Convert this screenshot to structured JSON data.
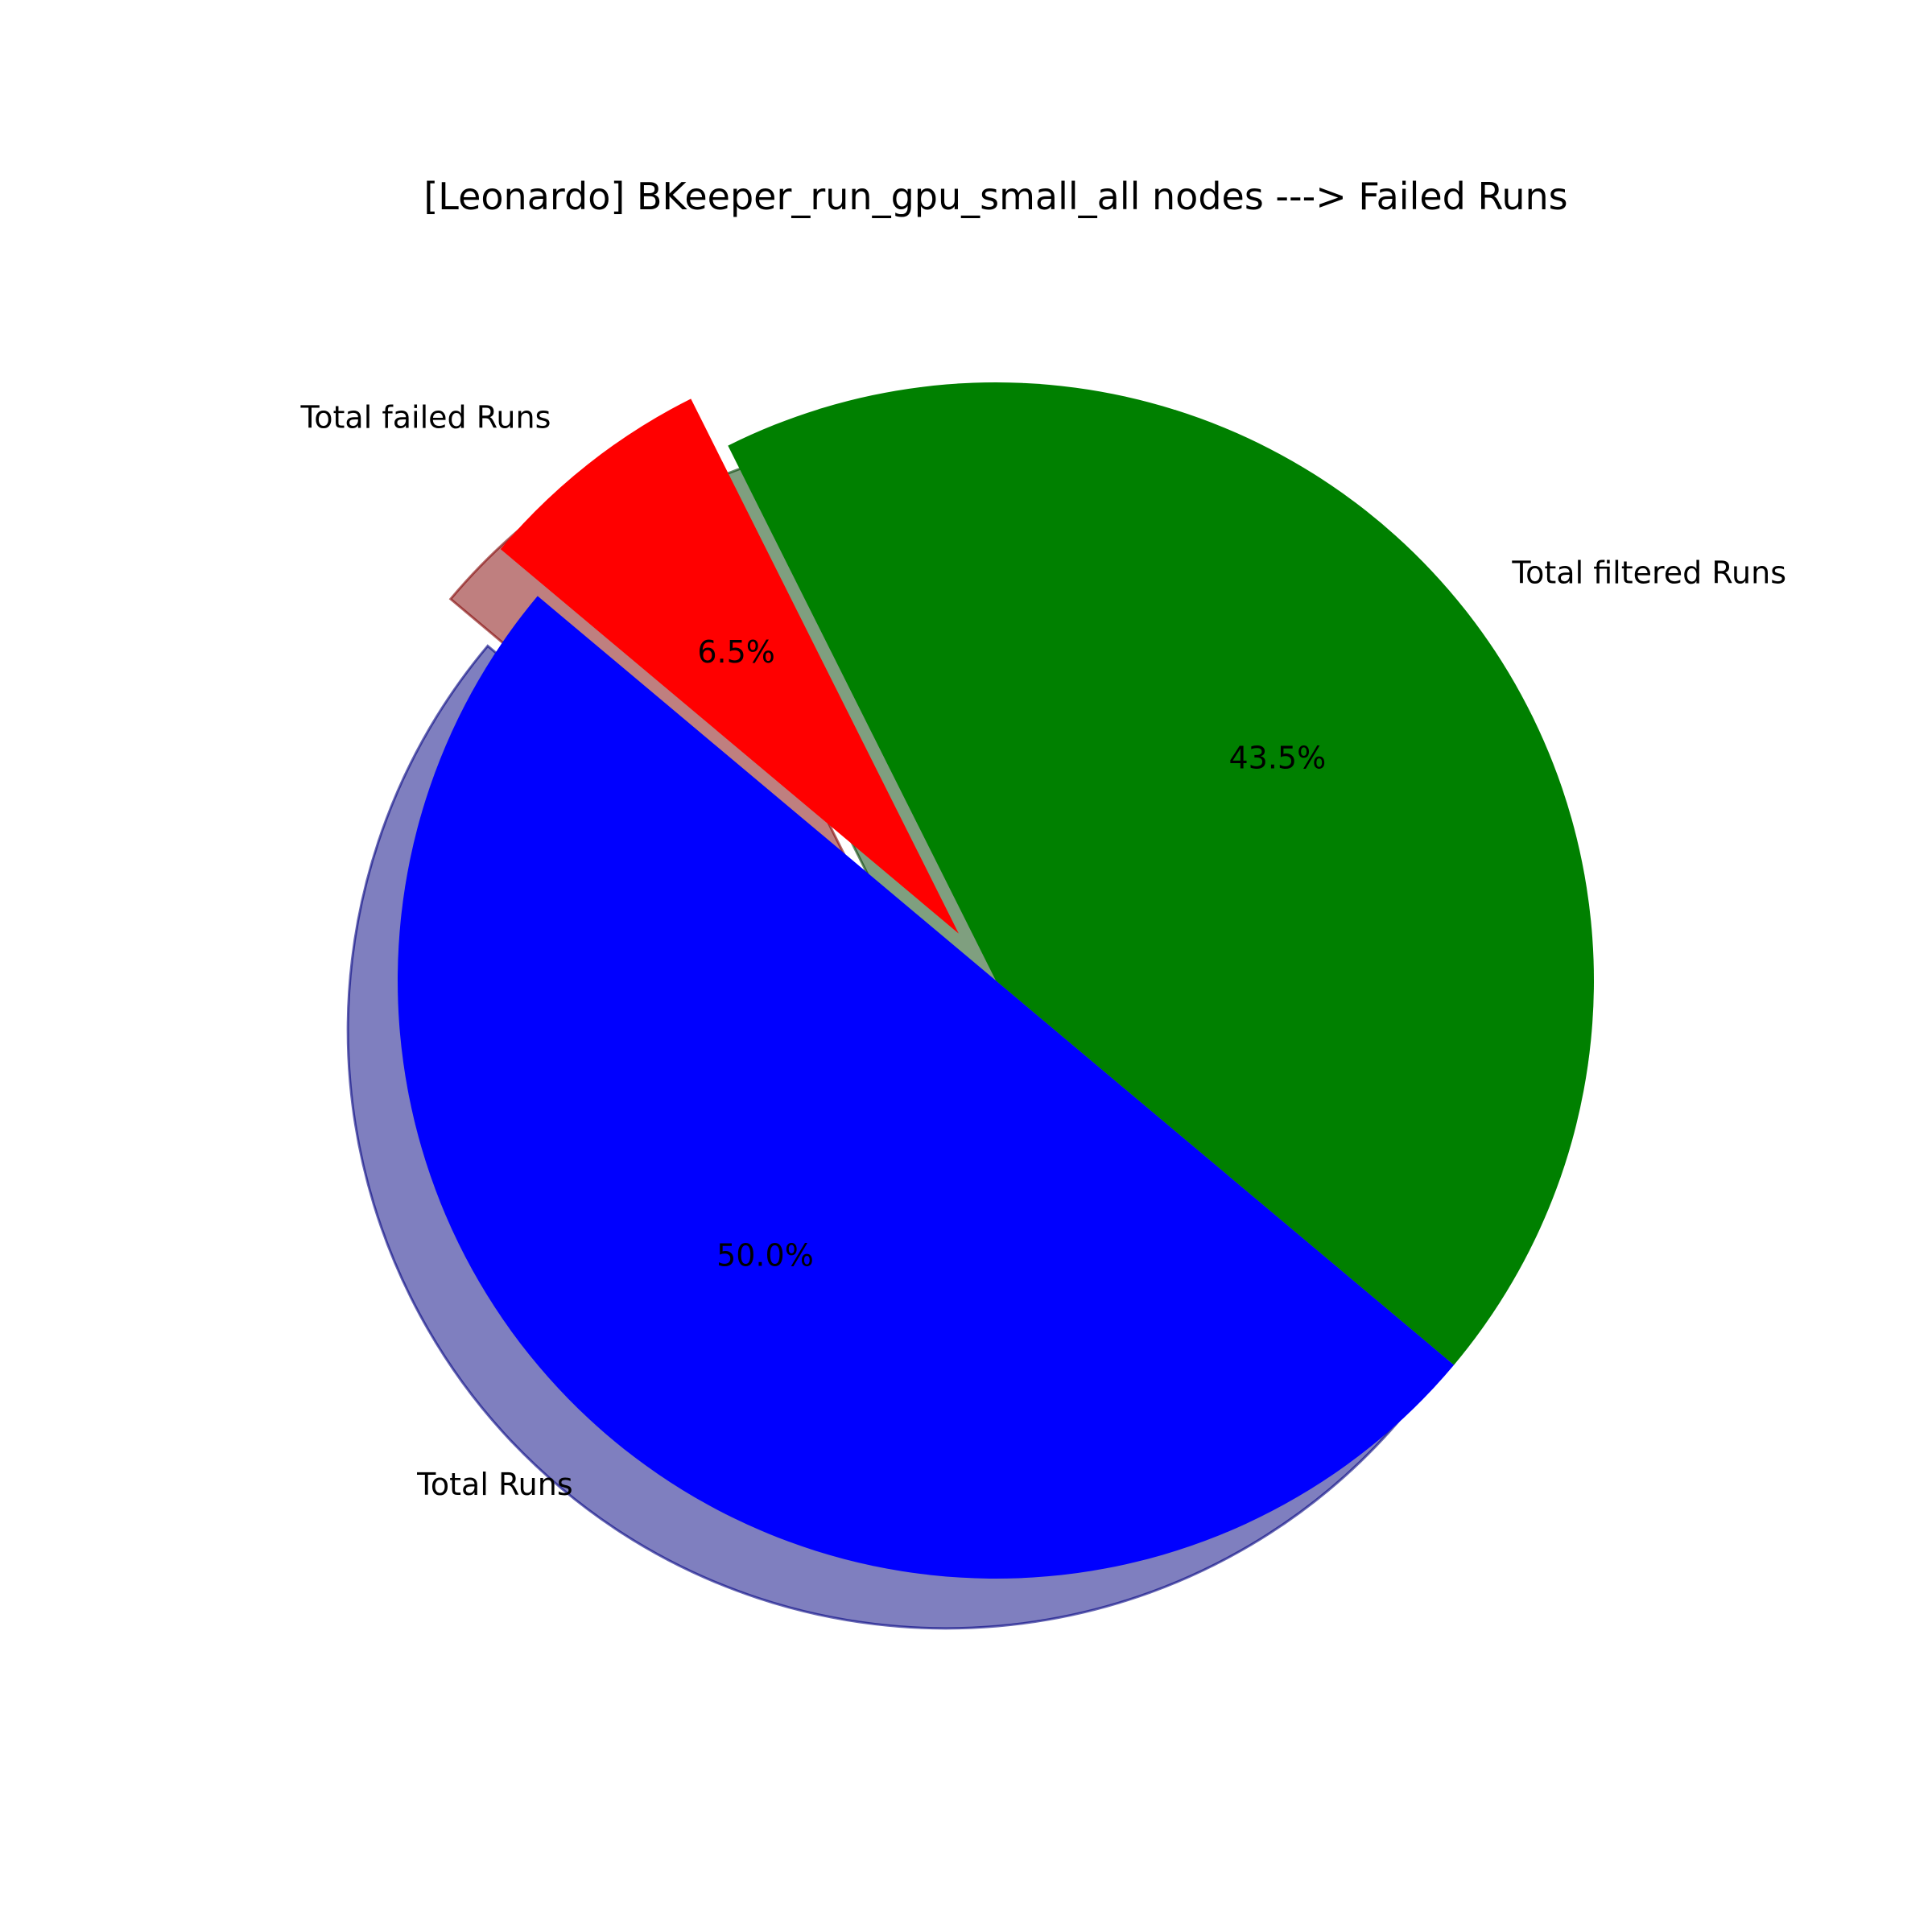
{
  "chart_data": {
    "type": "pie",
    "title": "[Leonardo] BKeeper_run_gpu_small_all nodes ---> Failed Runs",
    "start_angle_deg": 140,
    "shadow": true,
    "slices": [
      {
        "label": "Total Runs",
        "value": 50.0,
        "percent_label": "50.0%",
        "color": "#0000ff",
        "explode": 0
      },
      {
        "label": "Total filtered Runs",
        "value": 43.5,
        "percent_label": "43.5%",
        "color": "#008000",
        "explode": 0
      },
      {
        "label": "Total failed Runs",
        "value": 6.5,
        "percent_label": "6.5%",
        "color": "#ff0000",
        "explode": 0.1
      }
    ]
  }
}
